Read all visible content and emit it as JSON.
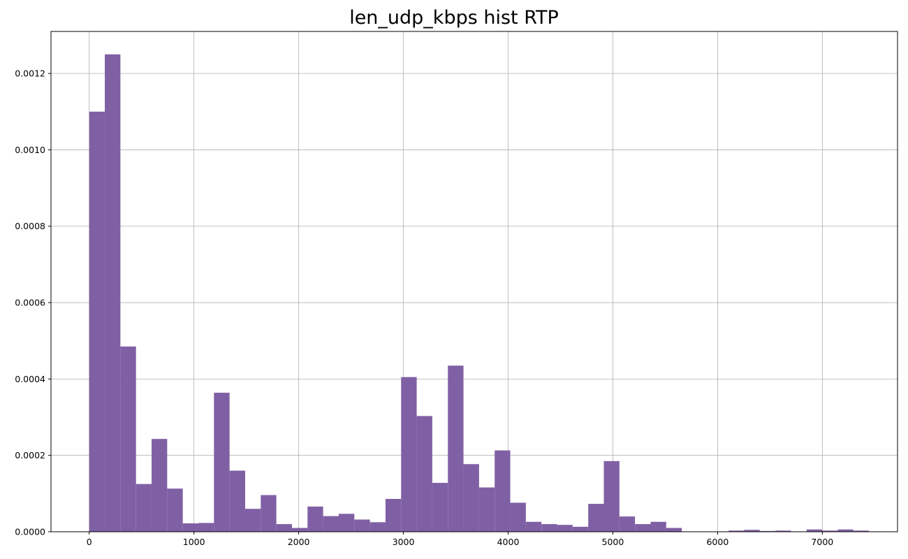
{
  "chart_data": {
    "type": "bar",
    "title": "len_udp_kbps hist RTP",
    "xlabel": "",
    "ylabel": "",
    "xlim": [
      -365,
      7718
    ],
    "ylim": [
      0,
      0.00131
    ],
    "grid": true,
    "bar_color": "#8060a4",
    "bin_start": 0,
    "bin_width": 148.9,
    "values": [
      0.0011,
      0.00125,
      0.000485,
      0.000125,
      0.000243,
      0.000113,
      2.2e-05,
      2.3e-05,
      0.000364,
      0.00016,
      6e-05,
      9.6e-05,
      2e-05,
      1e-05,
      6.6e-05,
      4.1e-05,
      4.7e-05,
      3.2e-05,
      2.5e-05,
      8.6e-05,
      0.000405,
      0.000303,
      0.000128,
      0.000435,
      0.000177,
      0.000116,
      0.000213,
      7.6e-05,
      2.6e-05,
      2e-05,
      1.8e-05,
      1.3e-05,
      7.3e-05,
      0.000185,
      4e-05,
      2e-05,
      2.6e-05,
      1e-05,
      0,
      0,
      0,
      3e-06,
      5e-06,
      2e-06,
      3e-06,
      1e-06,
      6e-06,
      3e-06,
      6e-06,
      3e-06,
      1e-06
    ],
    "x_ticks": [
      0,
      1000,
      2000,
      3000,
      4000,
      5000,
      6000,
      7000
    ],
    "y_ticks": [
      0,
      0.0002,
      0.0004,
      0.0006,
      0.0008,
      0.001,
      0.0012
    ],
    "x_tick_labels": [
      "0",
      "1000",
      "2000",
      "3000",
      "4000",
      "5000",
      "6000",
      "7000"
    ],
    "y_tick_labels": [
      "0.0000",
      "0.0002",
      "0.0004",
      "0.0006",
      "0.0008",
      "0.0010",
      "0.0012"
    ]
  }
}
